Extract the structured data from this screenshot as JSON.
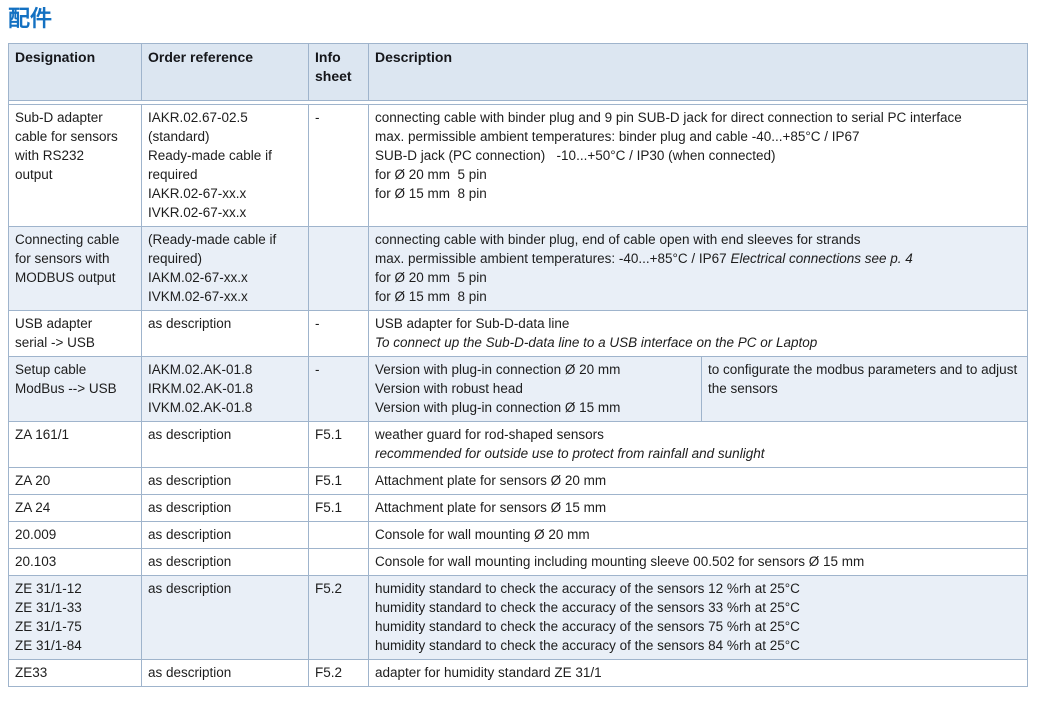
{
  "page": {
    "title": "配件"
  },
  "colors": {
    "title": "#1471c2",
    "header_bg": "#dce6f1",
    "row_shaded_bg": "#e9eff7",
    "border": "#9fb4cc",
    "text": "#1d1d1d"
  },
  "table": {
    "headers": [
      "Designation",
      "Order reference",
      "Info sheet",
      "Description"
    ],
    "rows": [
      {
        "designation": [
          "Sub-D adapter",
          "cable for sensors",
          "with RS232",
          "output"
        ],
        "order_reference": [
          "IAKR.02.67-02.5",
          "(standard)",
          "Ready-made cable if",
          "required",
          "IAKR.02-67-xx.x",
          "IVKR.02-67-xx.x"
        ],
        "info_sheet": "-",
        "shaded": false,
        "description": [
          "connecting cable with binder plug and 9 pin SUB-D jack for direct connection to serial PC interface",
          "max. permissible ambient temperatures: binder plug and cable -40...+85°C / IP67",
          "SUB-D jack (PC connection)   -10...+50°C / IP30 (when connected)",
          "for Ø 20 mm  5 pin",
          "for Ø 15 mm  8 pin"
        ]
      },
      {
        "designation": [
          "Connecting cable",
          "for sensors with",
          "MODBUS output"
        ],
        "order_reference": [
          "(Ready-made cable if",
          "required)",
          "IAKM.02-67-xx.x",
          "IVKM.02-67-xx.x"
        ],
        "info_sheet": "",
        "shaded": true,
        "description": [
          "connecting cable with binder plug, end of cable open with end sleeves for strands",
          [
            {
              "text": "max. permissible ambient temperatures: -40...+85°C / IP67 ",
              "italic": false
            },
            {
              "text": "Electrical connections see p. 4",
              "italic": true
            }
          ],
          "for Ø 20 mm  5 pin",
          "for Ø 15 mm  8 pin"
        ]
      },
      {
        "designation": [
          "USB adapter",
          "serial -> USB"
        ],
        "order_reference": [
          "as description"
        ],
        "info_sheet": "-",
        "shaded": false,
        "description": [
          "USB adapter for Sub-D-data line",
          {
            "text": "To connect up the Sub-D-data line to a USB interface on the PC or Laptop",
            "italic": true
          }
        ]
      },
      {
        "designation": [
          "Setup cable",
          "ModBus --> USB"
        ],
        "order_reference": [
          "IAKM.02.AK-01.8",
          "IRKM.02.AK-01.8",
          "IVKM.02.AK-01.8"
        ],
        "info_sheet": "-",
        "shaded": true,
        "description_split": {
          "left": [
            "Version with plug-in connection Ø 20 mm",
            "Version with robust head",
            "Version with plug-in connection Ø 15 mm"
          ],
          "right": [
            "to configurate the modbus parameters and to adjust the sensors"
          ]
        }
      },
      {
        "designation": [
          "ZA 161/1"
        ],
        "order_reference": [
          "as description"
        ],
        "info_sheet": "F5.1",
        "shaded": false,
        "description": [
          "weather guard for rod-shaped sensors",
          {
            "text": "recommended for outside use to protect from rainfall and sunlight",
            "italic": true
          }
        ]
      },
      {
        "designation": [
          "ZA 20"
        ],
        "order_reference": [
          "as description"
        ],
        "info_sheet": "F5.1",
        "shaded": false,
        "description": [
          "Attachment plate for sensors Ø 20 mm"
        ]
      },
      {
        "designation": [
          "ZA 24"
        ],
        "order_reference": [
          "as description"
        ],
        "info_sheet": "F5.1",
        "shaded": false,
        "description": [
          "Attachment plate for sensors Ø 15 mm"
        ]
      },
      {
        "designation": [
          "20.009"
        ],
        "order_reference": [
          "as description"
        ],
        "info_sheet": "",
        "shaded": false,
        "description": [
          "Console for wall mounting Ø 20 mm"
        ]
      },
      {
        "designation": [
          "20.103"
        ],
        "order_reference": [
          "as description"
        ],
        "info_sheet": "",
        "shaded": false,
        "description": [
          "Console for wall mounting including mounting sleeve 00.502 for sensors Ø 15 mm"
        ]
      },
      {
        "designation": [
          "ZE 31/1-12",
          "ZE 31/1-33",
          "ZE 31/1-75",
          "ZE 31/1-84"
        ],
        "order_reference": [
          "as description"
        ],
        "info_sheet": "F5.2",
        "shaded": true,
        "description": [
          "humidity standard to check the accuracy of the sensors 12 %rh at 25°C",
          "humidity standard to check the accuracy of the sensors 33 %rh at 25°C",
          "humidity standard to check the accuracy of the sensors 75 %rh at 25°C",
          "humidity standard to check the accuracy of the sensors 84 %rh at 25°C"
        ]
      },
      {
        "designation": [
          "ZE33"
        ],
        "order_reference": [
          "as description"
        ],
        "info_sheet": "F5.2",
        "shaded": false,
        "description": [
          "adapter for humidity standard ZE 31/1"
        ]
      }
    ]
  }
}
